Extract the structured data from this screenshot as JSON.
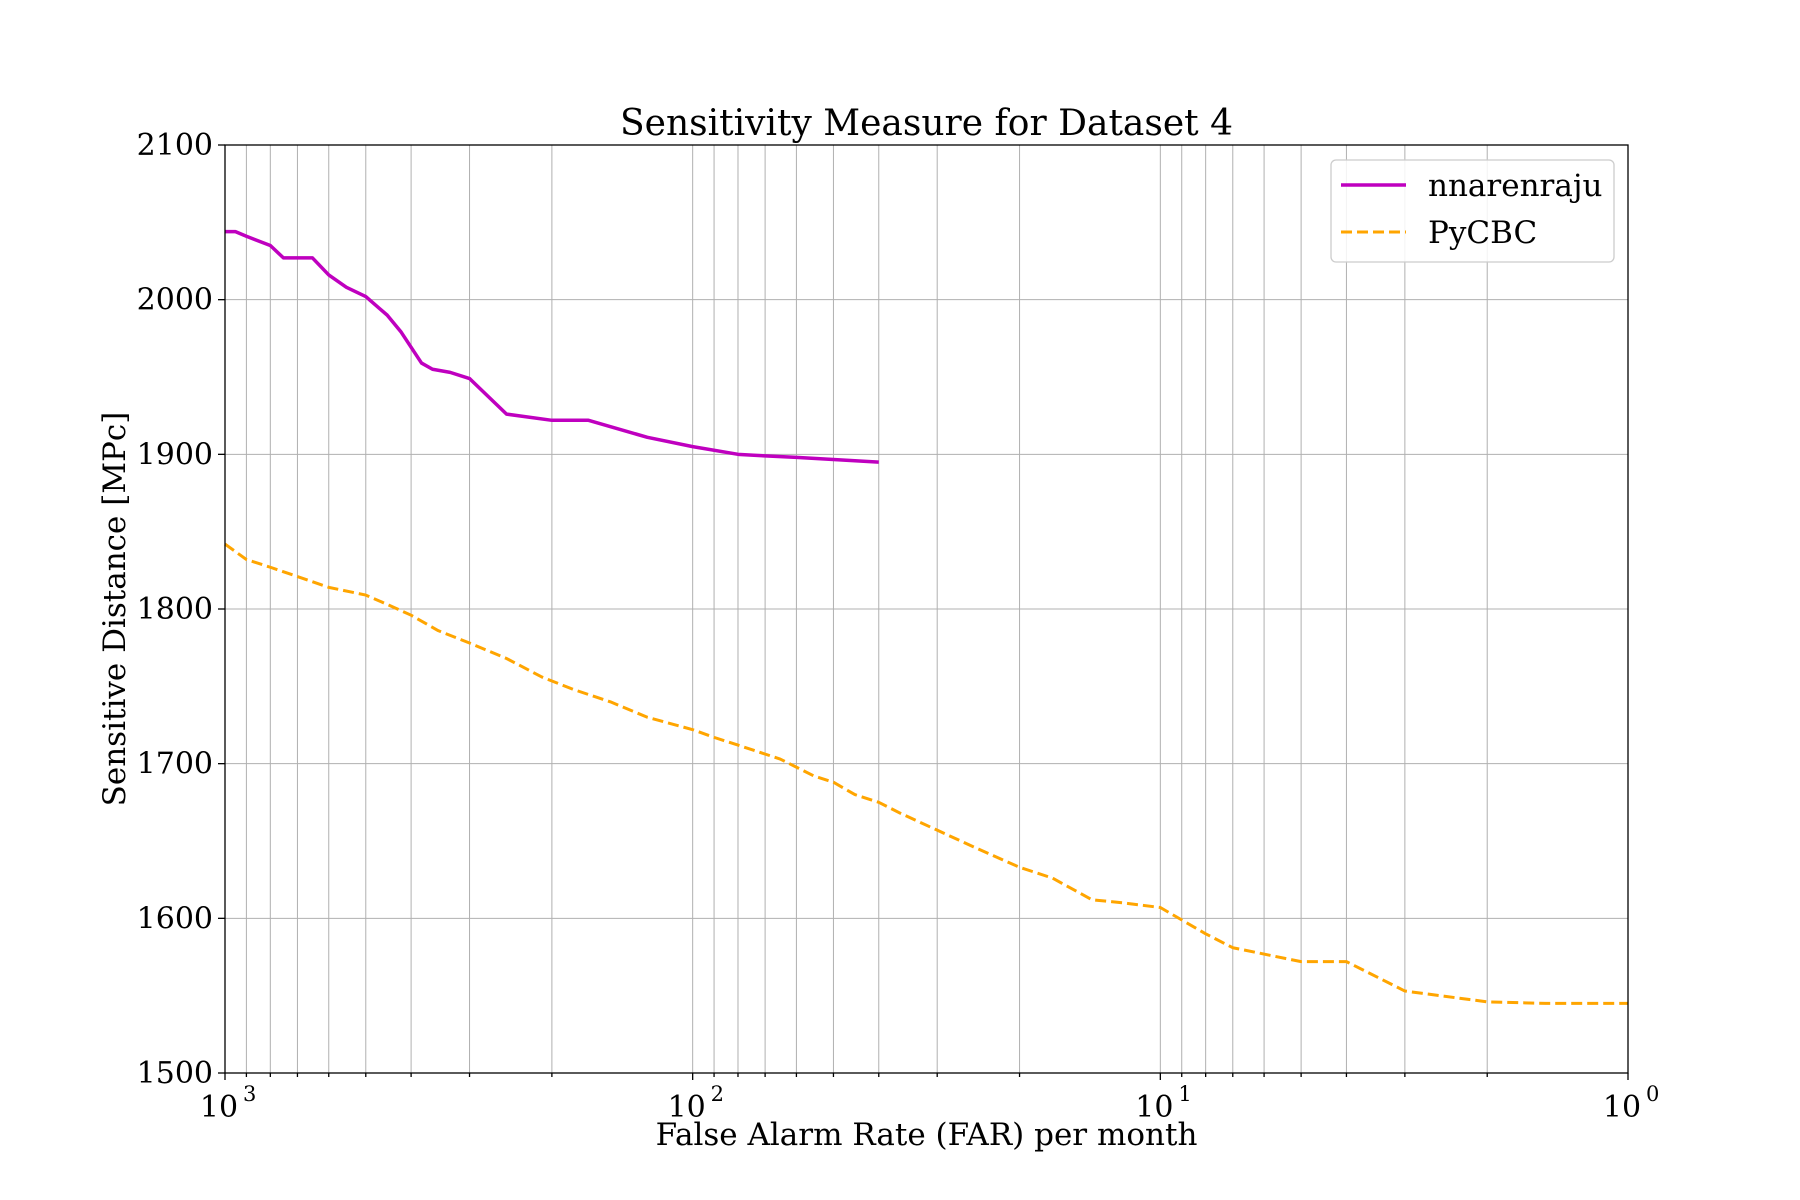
{
  "chart_data": {
    "type": "line",
    "title": "Sensitivity Measure for Dataset 4",
    "xlabel": "False Alarm Rate (FAR) per month",
    "ylabel": "Sensitive Distance [MPc]",
    "x_scale": "log",
    "x_inverted": true,
    "xlim": [
      1000,
      1
    ],
    "ylim": [
      1500,
      2100
    ],
    "grid": true,
    "legend_position": "top-right",
    "x_ticks": [
      {
        "value": 1000,
        "base": "10",
        "exp": "3"
      },
      {
        "value": 100,
        "base": "10",
        "exp": "2"
      },
      {
        "value": 10,
        "base": "10",
        "exp": "1"
      },
      {
        "value": 1,
        "base": "10",
        "exp": "0"
      }
    ],
    "y_ticks": [
      {
        "value": 1500,
        "label": "1500"
      },
      {
        "value": 1600,
        "label": "1600"
      },
      {
        "value": 1700,
        "label": "1700"
      },
      {
        "value": 1800,
        "label": "1800"
      },
      {
        "value": 1900,
        "label": "1900"
      },
      {
        "value": 2000,
        "label": "2000"
      },
      {
        "value": 2100,
        "label": "2100"
      }
    ],
    "series": [
      {
        "name": "nnarenraju",
        "color": "#bf00bf",
        "style": "solid",
        "x": [
          1000,
          950,
          900,
          800,
          750,
          700,
          650,
          600,
          550,
          500,
          450,
          420,
          380,
          360,
          330,
          300,
          250,
          200,
          167,
          125,
          100,
          80,
          70,
          60,
          40
        ],
        "y": [
          2044,
          2044,
          2041,
          2035,
          2027,
          2027,
          2027,
          2016,
          2008,
          2002,
          1990,
          1979,
          1959,
          1955,
          1953,
          1949,
          1926,
          1922,
          1922,
          1911,
          1905,
          1900,
          1899,
          1898,
          1895
        ]
      },
      {
        "name": "PyCBC",
        "color": "#ffa500",
        "style": "dashed",
        "x": [
          1000,
          900,
          800,
          700,
          600,
          500,
          450,
          400,
          350,
          300,
          250,
          210,
          180,
          150,
          125,
          100,
          90,
          80,
          65,
          55,
          50,
          45,
          40,
          36,
          30,
          25,
          20,
          17,
          14,
          12,
          10,
          8,
          7,
          5,
          4,
          3,
          2,
          1.5,
          1
        ],
        "y": [
          1842,
          1832,
          1827,
          1821,
          1814,
          1809,
          1803,
          1796,
          1786,
          1778,
          1768,
          1756,
          1748,
          1740,
          1730,
          1722,
          1717,
          1712,
          1703,
          1692,
          1688,
          1680,
          1675,
          1668,
          1657,
          1646,
          1633,
          1626,
          1612,
          1610,
          1607,
          1590,
          1581,
          1572,
          1572,
          1553,
          1546,
          1545,
          1545
        ]
      }
    ]
  }
}
